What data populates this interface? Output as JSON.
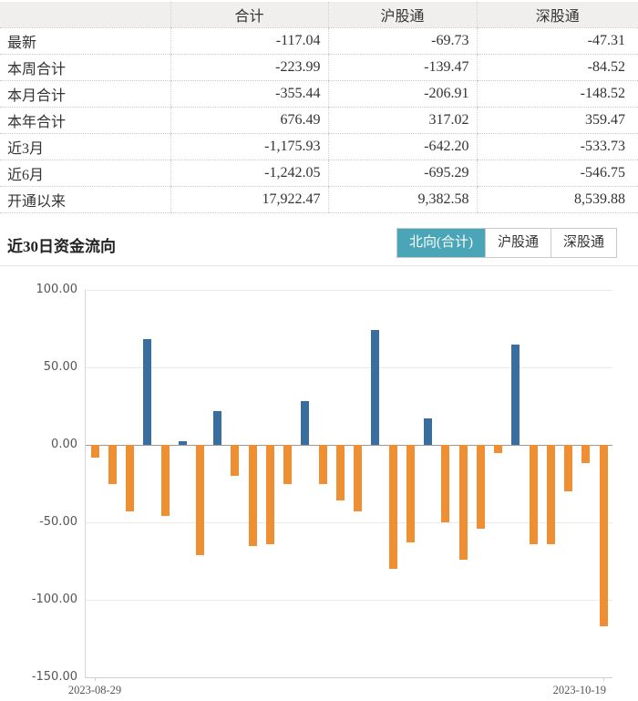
{
  "table": {
    "headers": [
      "",
      "合计",
      "沪股通",
      "深股通"
    ],
    "rows": [
      {
        "label": "最新",
        "values": [
          "-117.04",
          "-69.73",
          "-47.31"
        ]
      },
      {
        "label": "本周合计",
        "values": [
          "-223.99",
          "-139.47",
          "-84.52"
        ]
      },
      {
        "label": "本月合计",
        "values": [
          "-355.44",
          "-206.91",
          "-148.52"
        ]
      },
      {
        "label": "本年合计",
        "values": [
          "676.49",
          "317.02",
          "359.47"
        ]
      },
      {
        "label": "近3月",
        "values": [
          "-1,175.93",
          "-642.20",
          "-533.73"
        ]
      },
      {
        "label": "近6月",
        "values": [
          "-1,242.05",
          "-695.29",
          "-546.75"
        ]
      },
      {
        "label": "开通以来",
        "values": [
          "17,922.47",
          "9,382.58",
          "8,539.88"
        ]
      }
    ]
  },
  "section": {
    "title": "近30日资金流向",
    "tabs": [
      {
        "label": "北向(合计)",
        "selected": true
      },
      {
        "label": "沪股通",
        "selected": false
      },
      {
        "label": "深股通",
        "selected": false
      }
    ]
  },
  "chart_data": {
    "type": "bar",
    "title": "近30日资金流向",
    "series": [
      {
        "name": "北向(合计)",
        "values": [
          -8,
          -25,
          -43,
          68,
          -46,
          2.5,
          -71,
          22,
          -20,
          -65,
          -64,
          -25,
          28,
          -25,
          -36,
          -43,
          74,
          -80,
          -63,
          17,
          -50,
          -74,
          -54,
          -5,
          65,
          -64,
          -64,
          -30,
          -12,
          -117.04
        ]
      }
    ],
    "n_points": 30,
    "xlabel": "",
    "ylabel": "",
    "x_tick_labels": [
      "2023-08-29",
      "2023-10-19"
    ],
    "ytick_labels": [
      "100.00",
      "50.00",
      "0.00",
      "-50.00",
      "-100.00",
      "-150.00"
    ],
    "ylim": [
      -150,
      100
    ],
    "grid": true,
    "legend_position": "none",
    "colors": {
      "positive": "#3a6e9f",
      "negative": "#ee8f33"
    }
  },
  "colors": {
    "tab_active_bg": "#4aa5b6",
    "tab_active_text": "#ffffff",
    "table_header_bg": "#f0efee",
    "bar_positive": "#3a6e9f",
    "bar_negative": "#ee8f33"
  }
}
